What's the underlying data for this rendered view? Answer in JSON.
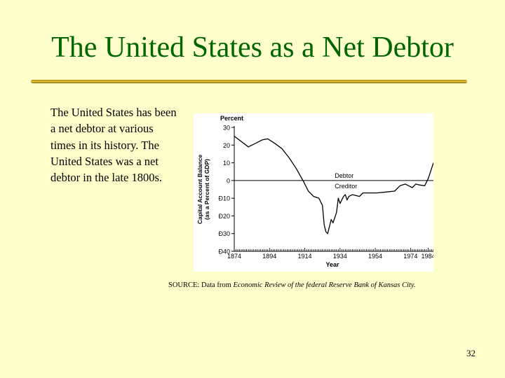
{
  "slide": {
    "title": "The United States as a Net Debtor",
    "body": "The United States has been a net debtor at various times in its history. The United States was a net debtor in the late 1800s.",
    "source_prefix": "SOURCE: Data from ",
    "source_publication": "Economic Review of the federal Reserve Bank of Kansas City.",
    "page_number": "32",
    "colors": {
      "title": "#006600",
      "background": "#ffffcc",
      "rule": "#d4b000"
    }
  },
  "chart_data": {
    "type": "line",
    "xlabel": "Year",
    "ylabel": "Capital Account Balance",
    "ylabel_sub": "(as a Percent of GDP)",
    "y_unit_label": "Percent",
    "xlim": [
      1874,
      1987
    ],
    "ylim": [
      -40,
      30
    ],
    "x_ticks": [
      "1874",
      "1894",
      "1914",
      "1934",
      "1954",
      "1974",
      "1984"
    ],
    "x_tick_values": [
      1874,
      1894,
      1914,
      1934,
      1954,
      1974,
      1984
    ],
    "y_ticks": [
      "30",
      "20",
      "10",
      "0",
      "Ð10",
      "Ð20",
      "Ð30",
      "Ð40"
    ],
    "y_tick_values": [
      30,
      20,
      10,
      0,
      -10,
      -20,
      -30,
      -40
    ],
    "zero_line_labels": {
      "above": "Debtor",
      "below": "Creditor"
    },
    "series": [
      {
        "values": [
          [
            1874,
            25
          ],
          [
            1878,
            22
          ],
          [
            1882,
            19
          ],
          [
            1886,
            21
          ],
          [
            1890,
            23
          ],
          [
            1893,
            23.5
          ],
          [
            1897,
            21
          ],
          [
            1901,
            18
          ],
          [
            1905,
            13
          ],
          [
            1909,
            7
          ],
          [
            1913,
            0
          ],
          [
            1916,
            -6
          ],
          [
            1919,
            -9
          ],
          [
            1922,
            -10
          ],
          [
            1924,
            -14
          ],
          [
            1925,
            -25
          ],
          [
            1926,
            -29
          ],
          [
            1927,
            -30
          ],
          [
            1928,
            -26
          ],
          [
            1929,
            -22
          ],
          [
            1930,
            -24
          ],
          [
            1931,
            -21
          ],
          [
            1932,
            -18
          ],
          [
            1933,
            -10
          ],
          [
            1934,
            -13
          ],
          [
            1935,
            -11
          ],
          [
            1936,
            -9
          ],
          [
            1937,
            -8
          ],
          [
            1938,
            -11
          ],
          [
            1939,
            -9
          ],
          [
            1941,
            -8
          ],
          [
            1943,
            -8.5
          ],
          [
            1945,
            -9
          ],
          [
            1947,
            -7
          ],
          [
            1950,
            -7
          ],
          [
            1955,
            -7
          ],
          [
            1960,
            -6.5
          ],
          [
            1965,
            -6
          ],
          [
            1968,
            -3
          ],
          [
            1971,
            -2
          ],
          [
            1973,
            -3
          ],
          [
            1975,
            -4
          ],
          [
            1977,
            -2
          ],
          [
            1979,
            -2.5
          ],
          [
            1982,
            -3
          ],
          [
            1984,
            1
          ],
          [
            1986,
            7
          ],
          [
            1987,
            10
          ]
        ]
      }
    ]
  }
}
